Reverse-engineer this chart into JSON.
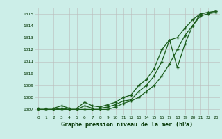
{
  "title": "Graphe pression niveau de la mer (hPa)",
  "bg_color": "#cceee8",
  "line_color": "#1a5c1a",
  "x_labels": [
    "0",
    "1",
    "2",
    "3",
    "4",
    "5",
    "6",
    "7",
    "8",
    "9",
    "10",
    "11",
    "12",
    "13",
    "14",
    "15",
    "16",
    "17",
    "18",
    "19",
    "20",
    "21",
    "22",
    "23"
  ],
  "y_min": 1006.5,
  "y_max": 1015.5,
  "y_ticks": [
    1007,
    1008,
    1009,
    1010,
    1011,
    1012,
    1013,
    1014,
    1015
  ],
  "series1": [
    1007.0,
    1007.0,
    1007.0,
    1007.0,
    1007.0,
    1007.0,
    1007.0,
    1007.0,
    1007.0,
    1007.0,
    1007.2,
    1007.5,
    1007.7,
    1008.0,
    1008.5,
    1009.0,
    1009.8,
    1010.8,
    1012.0,
    1013.2,
    1014.0,
    1014.8,
    1015.0,
    1015.1
  ],
  "series2": [
    1007.0,
    1007.0,
    1007.0,
    1007.1,
    1007.0,
    1007.0,
    1007.3,
    1007.1,
    1007.1,
    1007.2,
    1007.4,
    1007.7,
    1007.8,
    1008.5,
    1009.0,
    1009.8,
    1011.0,
    1012.8,
    1013.0,
    1013.8,
    1014.5,
    1015.0,
    1015.1,
    1015.2
  ],
  "series3": [
    1007.1,
    1007.1,
    1007.1,
    1007.3,
    1007.1,
    1007.1,
    1007.6,
    1007.3,
    1007.2,
    1007.4,
    1007.6,
    1008.0,
    1008.2,
    1009.0,
    1009.5,
    1010.4,
    1012.0,
    1012.8,
    1010.5,
    1012.5,
    1014.0,
    1015.0,
    1015.1,
    1015.2
  ]
}
